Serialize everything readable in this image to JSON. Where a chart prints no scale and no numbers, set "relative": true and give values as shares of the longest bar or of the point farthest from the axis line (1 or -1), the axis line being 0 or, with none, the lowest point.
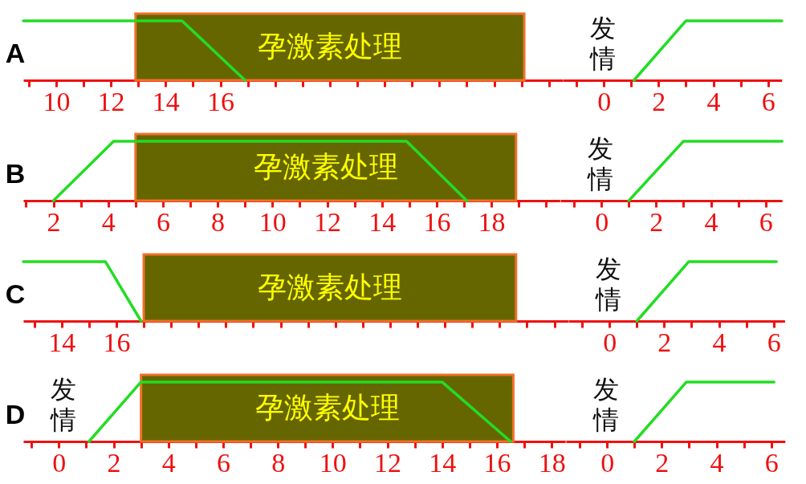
{
  "chart_data": [
    {
      "type": "line",
      "title": "A",
      "relative": true,
      "xlim": [
        8.8,
        28.5
      ],
      "xticks": [
        {
          "value": 9,
          "label": null
        },
        10,
        {
          "value": 11,
          "label": null
        },
        12,
        {
          "value": 13,
          "label": null
        },
        14,
        {
          "value": 15,
          "label": null
        },
        16,
        {
          "value": 17,
          "label": null
        },
        {
          "value": 18,
          "label": null
        },
        {
          "value": 19,
          "label": null
        },
        {
          "value": 20,
          "label": null
        },
        {
          "value": 21,
          "label": null
        },
        {
          "value": 22,
          "label": null
        },
        {
          "value": 23,
          "label": null
        },
        {
          "value": 24,
          "label": null
        },
        {
          "value": 25,
          "label": null
        },
        {
          "value": 26,
          "label": null
        },
        {
          "value": 27,
          "label": null
        },
        {
          "value": 28,
          "label": null
        }
      ],
      "series": [
        {
          "color": "#22dd22",
          "x": [
            8.8,
            14.6,
            16.9
          ],
          "values": [
            1,
            1,
            0
          ]
        }
      ],
      "bands": [
        {
          "axis": "x",
          "from": 12.9,
          "to": 27.1,
          "label": "孕激素处理",
          "color": "#666600"
        }
      ]
    },
    {
      "type": "line",
      "relative": true,
      "xlim": [
        -1.5,
        6.5
      ],
      "xticks": [
        {
          "value": -1,
          "label": null
        },
        0,
        {
          "value": 1,
          "label": null
        },
        2,
        {
          "value": 3,
          "label": null
        },
        4,
        {
          "value": 5,
          "label": null
        },
        6
      ],
      "series": [
        {
          "color": "#22dd22",
          "x": [
            1.1,
            3,
            6.5
          ],
          "values": [
            0,
            1,
            1
          ]
        }
      ],
      "annotations": [
        "发情"
      ]
    },
    {
      "type": "line",
      "title": "B",
      "relative": true,
      "xlim": [
        0.9,
        20.5
      ],
      "xticks": [
        {
          "value": 1,
          "label": null
        },
        2,
        {
          "value": 3,
          "label": null
        },
        4,
        {
          "value": 5,
          "label": null
        },
        6,
        {
          "value": 7,
          "label": null
        },
        8,
        {
          "value": 9,
          "label": null
        },
        10,
        {
          "value": 11,
          "label": null
        },
        12,
        {
          "value": 13,
          "label": null
        },
        14,
        {
          "value": 15,
          "label": null
        },
        16,
        {
          "value": 17,
          "label": null
        },
        18,
        {
          "value": 19,
          "label": null
        },
        {
          "value": 20,
          "label": null
        }
      ],
      "series": [
        {
          "color": "#22dd22",
          "x": [
            2,
            4.2,
            14.9,
            17.1
          ],
          "values": [
            0,
            1,
            1,
            0
          ]
        }
      ],
      "bands": [
        {
          "axis": "x",
          "from": 5.0,
          "to": 18.9,
          "label": "孕激素处理",
          "color": "#666600"
        }
      ]
    },
    {
      "type": "line",
      "relative": true,
      "xlim": [
        -1.5,
        6.6
      ],
      "xticks": [
        {
          "value": -1,
          "label": null
        },
        0,
        {
          "value": 1,
          "label": null
        },
        2,
        {
          "value": 3,
          "label": null
        },
        4,
        {
          "value": 5,
          "label": null
        },
        6
      ],
      "series": [
        {
          "color": "#22dd22",
          "x": [
            1,
            3,
            6.6
          ],
          "values": [
            0,
            1,
            1
          ]
        }
      ],
      "annotations": [
        "发情"
      ]
    },
    {
      "type": "line",
      "title": "C",
      "relative": true,
      "xlim": [
        12.6,
        32.5
      ],
      "xticks": [
        {
          "value": 13,
          "label": null
        },
        14,
        {
          "value": 15,
          "label": null
        },
        16,
        {
          "value": 17,
          "label": null
        },
        {
          "value": 18,
          "label": null
        },
        {
          "value": 19,
          "label": null
        },
        {
          "value": 20,
          "label": null
        },
        {
          "value": 21,
          "label": null
        },
        {
          "value": 22,
          "label": null
        },
        {
          "value": 23,
          "label": null
        },
        {
          "value": 24,
          "label": null
        },
        {
          "value": 25,
          "label": null
        },
        {
          "value": 26,
          "label": null
        },
        {
          "value": 27,
          "label": null
        },
        {
          "value": 28,
          "label": null
        },
        {
          "value": 29,
          "label": null
        },
        {
          "value": 30,
          "label": null
        },
        {
          "value": 31,
          "label": null
        },
        {
          "value": 32,
          "label": null
        }
      ],
      "series": [
        {
          "color": "#22dd22",
          "x": [
            12.6,
            15.6,
            16.9
          ],
          "values": [
            1,
            1,
            0
          ]
        }
      ],
      "bands": [
        {
          "axis": "x",
          "from": 17.0,
          "to": 30.6,
          "label": "孕激素处理",
          "color": "#666600"
        }
      ]
    },
    {
      "type": "line",
      "relative": true,
      "xlim": [
        -1.5,
        6.4
      ],
      "xticks": [
        {
          "value": -1,
          "label": null
        },
        0,
        {
          "value": 1,
          "label": null
        },
        2,
        {
          "value": 3,
          "label": null
        },
        4,
        {
          "value": 5,
          "label": null
        },
        6
      ],
      "series": [
        {
          "color": "#22dd22",
          "x": [
            1,
            2.9,
            6.1
          ],
          "values": [
            0,
            1,
            1
          ]
        }
      ],
      "annotations": [
        "发情"
      ]
    },
    {
      "type": "line",
      "title": "D",
      "relative": true,
      "xlim": [
        -1.3,
        18.5
      ],
      "xticks": [
        {
          "value": -1,
          "label": null
        },
        0,
        {
          "value": 1,
          "label": null
        },
        2,
        {
          "value": 3,
          "label": null
        },
        4,
        {
          "value": 5,
          "label": null
        },
        6,
        {
          "value": 7,
          "label": null
        },
        8,
        {
          "value": 9,
          "label": null
        },
        10,
        {
          "value": 11,
          "label": null
        },
        12,
        {
          "value": 13,
          "label": null
        },
        14,
        {
          "value": 15,
          "label": null
        },
        16,
        {
          "value": 17,
          "label": null
        },
        18
      ],
      "series": [
        {
          "color": "#22dd22",
          "x": [
            1.1,
            3,
            14,
            16.5
          ],
          "values": [
            0,
            1,
            1,
            0
          ]
        }
      ],
      "bands": [
        {
          "axis": "x",
          "from": 3.0,
          "to": 16.6,
          "label": "孕激素处理",
          "color": "#666600"
        }
      ],
      "annotations": [
        "发情"
      ]
    },
    {
      "type": "line",
      "relative": true,
      "xlim": [
        -1.5,
        6.5
      ],
      "xticks": [
        {
          "value": -1,
          "label": null
        },
        0,
        {
          "value": 1,
          "label": null
        },
        2,
        {
          "value": 3,
          "label": null
        },
        4,
        {
          "value": 5,
          "label": null
        },
        6
      ],
      "series": [
        {
          "color": "#22dd22",
          "x": [
            1,
            2.9,
            6.1
          ],
          "values": [
            0,
            1,
            1
          ]
        }
      ],
      "annotations": [
        "发情"
      ]
    }
  ]
}
